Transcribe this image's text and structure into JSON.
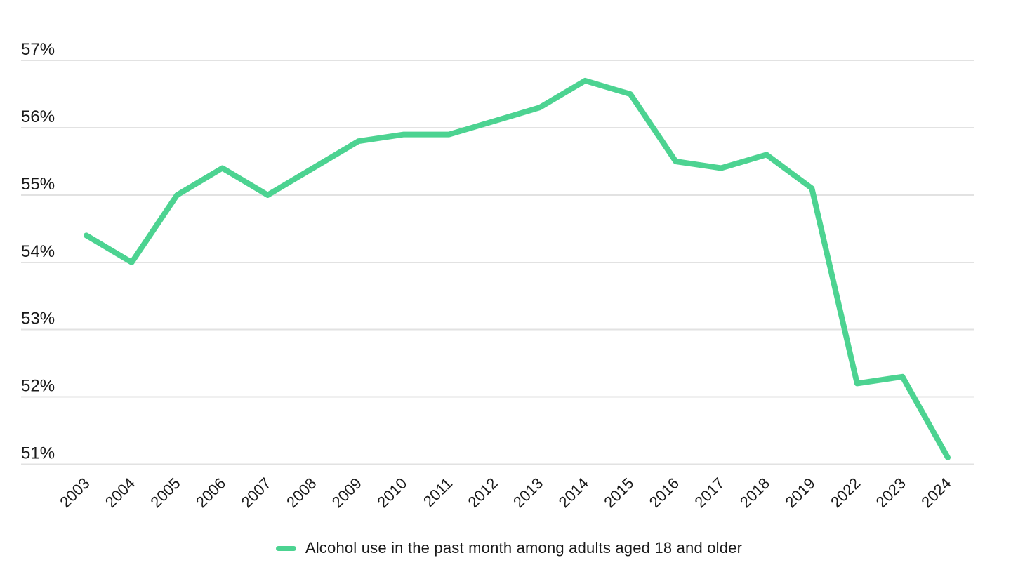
{
  "chart_data": {
    "type": "line",
    "x": [
      "2003",
      "2004",
      "2005",
      "2006",
      "2007",
      "2008",
      "2009",
      "2010",
      "2011",
      "2012",
      "2013",
      "2014",
      "2015",
      "2016",
      "2017",
      "2018",
      "2019",
      "2022",
      "2023",
      "2024"
    ],
    "series": [
      {
        "name": "Alcohol use in the past month among adults aged 18 and older",
        "color": "#4cd391",
        "values": [
          54.4,
          54.0,
          55.0,
          55.4,
          55.0,
          55.4,
          55.8,
          55.9,
          55.9,
          56.1,
          56.3,
          56.7,
          56.5,
          55.5,
          55.4,
          55.6,
          55.1,
          52.2,
          52.3,
          51.1
        ]
      }
    ],
    "title": "",
    "xlabel": "",
    "ylabel": "",
    "ylim": [
      51,
      57
    ],
    "y_ticks": [
      {
        "value": 51,
        "label": "51%"
      },
      {
        "value": 52,
        "label": "52%"
      },
      {
        "value": 53,
        "label": "53%"
      },
      {
        "value": 54,
        "label": "54%"
      },
      {
        "value": 55,
        "label": "55%"
      },
      {
        "value": 56,
        "label": "56%"
      },
      {
        "value": 57,
        "label": "57%"
      }
    ],
    "grid": "horizontal",
    "x_tick_rotation_deg": -45,
    "legend_position": "bottom-center"
  },
  "style": {
    "line_color": "#4cd391",
    "line_width": 8,
    "gridline_color": "#e2e2e2",
    "text_color": "#1a1a1a",
    "background": "#ffffff"
  }
}
